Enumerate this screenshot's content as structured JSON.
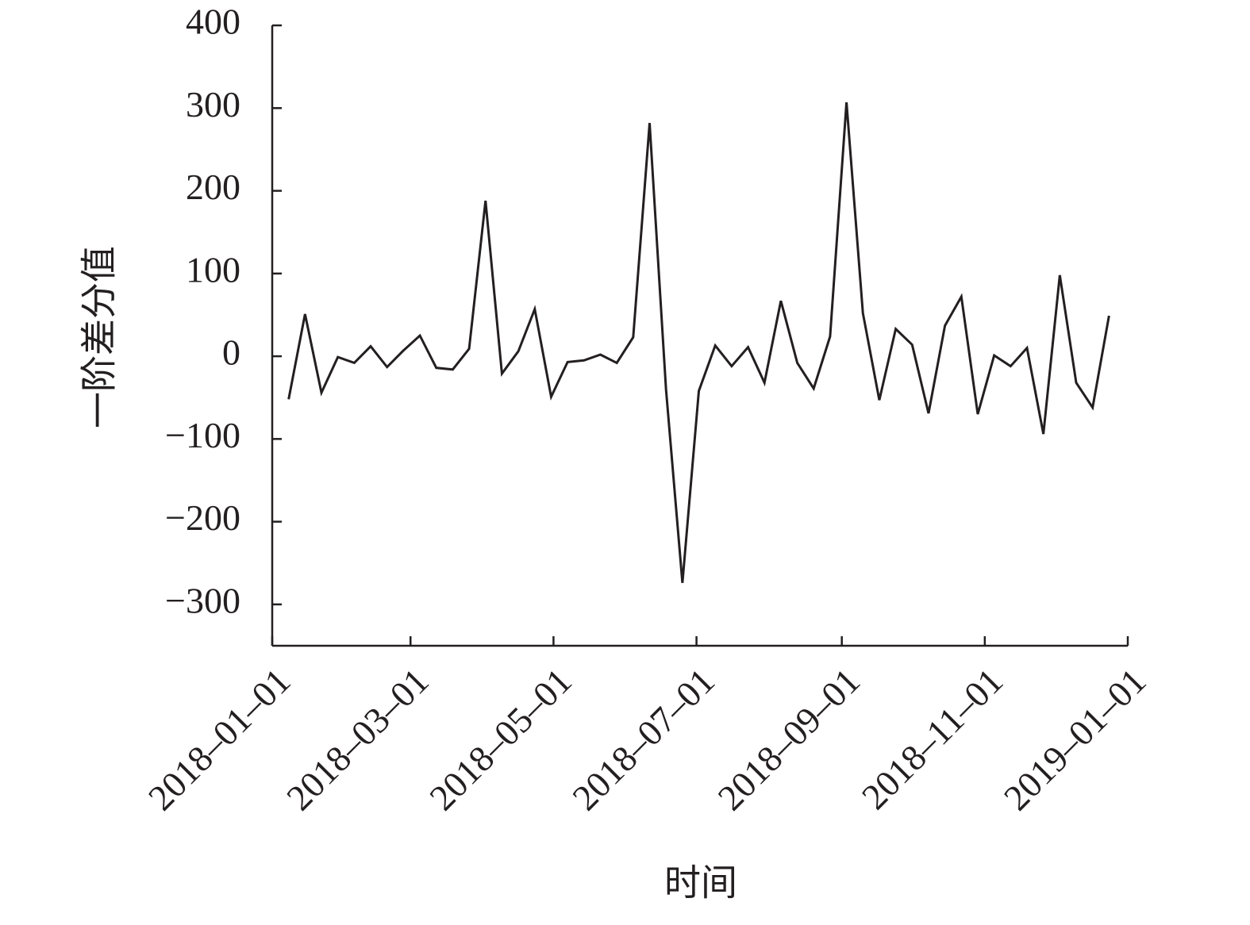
{
  "chart_data": {
    "type": "line",
    "x_label": "时间",
    "y_label": "一阶差分值",
    "x": [
      "2018-01-08",
      "2018-01-15",
      "2018-01-22",
      "2018-01-29",
      "2018-02-05",
      "2018-02-12",
      "2018-02-19",
      "2018-02-26",
      "2018-03-05",
      "2018-03-12",
      "2018-03-19",
      "2018-03-26",
      "2018-04-02",
      "2018-04-09",
      "2018-04-16",
      "2018-04-23",
      "2018-04-30",
      "2018-05-07",
      "2018-05-14",
      "2018-05-21",
      "2018-05-28",
      "2018-06-04",
      "2018-06-11",
      "2018-06-18",
      "2018-06-25",
      "2018-07-02",
      "2018-07-09",
      "2018-07-16",
      "2018-07-23",
      "2018-07-30",
      "2018-08-06",
      "2018-08-13",
      "2018-08-20",
      "2018-08-27",
      "2018-09-03",
      "2018-09-10",
      "2018-09-17",
      "2018-09-24",
      "2018-10-01",
      "2018-10-08",
      "2018-10-15",
      "2018-10-22",
      "2018-10-29",
      "2018-11-05",
      "2018-11-12",
      "2018-11-19",
      "2018-11-26",
      "2018-12-03",
      "2018-12-10",
      "2018-12-17",
      "2018-12-24"
    ],
    "series": [
      {
        "name": "一阶差分值",
        "color": "#231f20",
        "values": [
          -52,
          51,
          -44,
          -1,
          -8,
          12,
          -13,
          7,
          25,
          -14,
          -16,
          9,
          188,
          -21,
          6,
          57,
          -49,
          -7,
          -5,
          2,
          -8,
          23,
          282,
          -40,
          -274,
          -42,
          13,
          -12,
          11,
          -32,
          67,
          -8,
          -39,
          24,
          307,
          52,
          -53,
          33,
          14,
          -69,
          37,
          72,
          -70,
          1,
          -12,
          10,
          -94,
          98,
          -32,
          -62,
          49
        ]
      }
    ],
    "xlim": [
      "2018-01-01",
      "2019-01-01"
    ],
    "xticks": [
      {
        "value": "2018-01-01",
        "label": "2018–01–01"
      },
      {
        "value": "2018-03-01",
        "label": "2018–03–01"
      },
      {
        "value": "2018-05-01",
        "label": "2018–05–01"
      },
      {
        "value": "2018-07-01",
        "label": "2018–07–01"
      },
      {
        "value": "2018-09-01",
        "label": "2018–09–01"
      },
      {
        "value": "2018-11-01",
        "label": "2018–11–01"
      },
      {
        "value": "2019-01-01",
        "label": "2019–01–01"
      }
    ],
    "ylim": [
      -350,
      400
    ],
    "yticks": [
      {
        "value": -300,
        "label": "−300"
      },
      {
        "value": -200,
        "label": "−200"
      },
      {
        "value": -100,
        "label": "−100"
      },
      0,
      100,
      200,
      300,
      400
    ]
  }
}
